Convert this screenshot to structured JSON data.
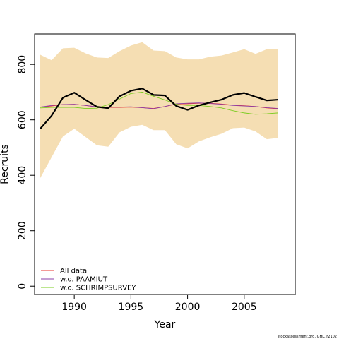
{
  "chart_data": {
    "type": "line",
    "xlabel": "Year",
    "ylabel": "Recruits",
    "xlim": [
      1986.5,
      2009.5
    ],
    "ylim": [
      -30,
      910
    ],
    "x_ticks": [
      1990,
      1995,
      2000,
      2005
    ],
    "y_ticks": [
      0,
      200,
      400,
      600,
      800
    ],
    "x": [
      1987,
      1988,
      1989,
      1990,
      1991,
      1992,
      1993,
      1994,
      1995,
      1996,
      1997,
      1998,
      1999,
      2000,
      2001,
      2002,
      2003,
      2004,
      2005,
      2006,
      2007,
      2008
    ],
    "band": {
      "lower": [
        390,
        465,
        540,
        568,
        538,
        508,
        503,
        555,
        575,
        582,
        563,
        563,
        512,
        497,
        522,
        537,
        550,
        570,
        572,
        558,
        530,
        535
      ],
      "upper": [
        835,
        815,
        858,
        860,
        840,
        825,
        823,
        848,
        868,
        880,
        850,
        848,
        825,
        818,
        818,
        828,
        832,
        843,
        855,
        838,
        855,
        855
      ],
      "color": "#f5deb3"
    },
    "series": [
      {
        "name": "",
        "color": "#000000",
        "values": [
          568,
          615,
          680,
          698,
          672,
          647,
          642,
          685,
          705,
          713,
          690,
          688,
          650,
          636,
          652,
          663,
          673,
          690,
          697,
          683,
          670,
          673
        ]
      },
      {
        "name": "All data",
        "color": "#e8332d",
        "values": [
          646,
          650,
          655,
          656,
          652,
          646,
          645,
          645,
          646,
          644,
          641,
          648,
          657,
          658,
          660,
          660,
          657,
          653,
          651,
          648,
          643,
          640
        ]
      },
      {
        "name": "w.o. PAAMIUT",
        "color": "#8b3fa8",
        "values": [
          646,
          652,
          655,
          656,
          652,
          647,
          646,
          646,
          647,
          644,
          640,
          648,
          658,
          660,
          661,
          659,
          656,
          652,
          650,
          648,
          644,
          641
        ]
      },
      {
        "name": "w.o. SCHRIMPSURVEY",
        "color": "#7acc1f",
        "values": [
          643,
          645,
          645,
          645,
          641,
          642,
          655,
          675,
          695,
          700,
          685,
          672,
          656,
          652,
          652,
          648,
          643,
          633,
          625,
          620,
          622,
          625
        ]
      }
    ],
    "legend_placement": "bottom-left",
    "grid": false
  },
  "footer": "stockassessment.org, GHL, r2102"
}
